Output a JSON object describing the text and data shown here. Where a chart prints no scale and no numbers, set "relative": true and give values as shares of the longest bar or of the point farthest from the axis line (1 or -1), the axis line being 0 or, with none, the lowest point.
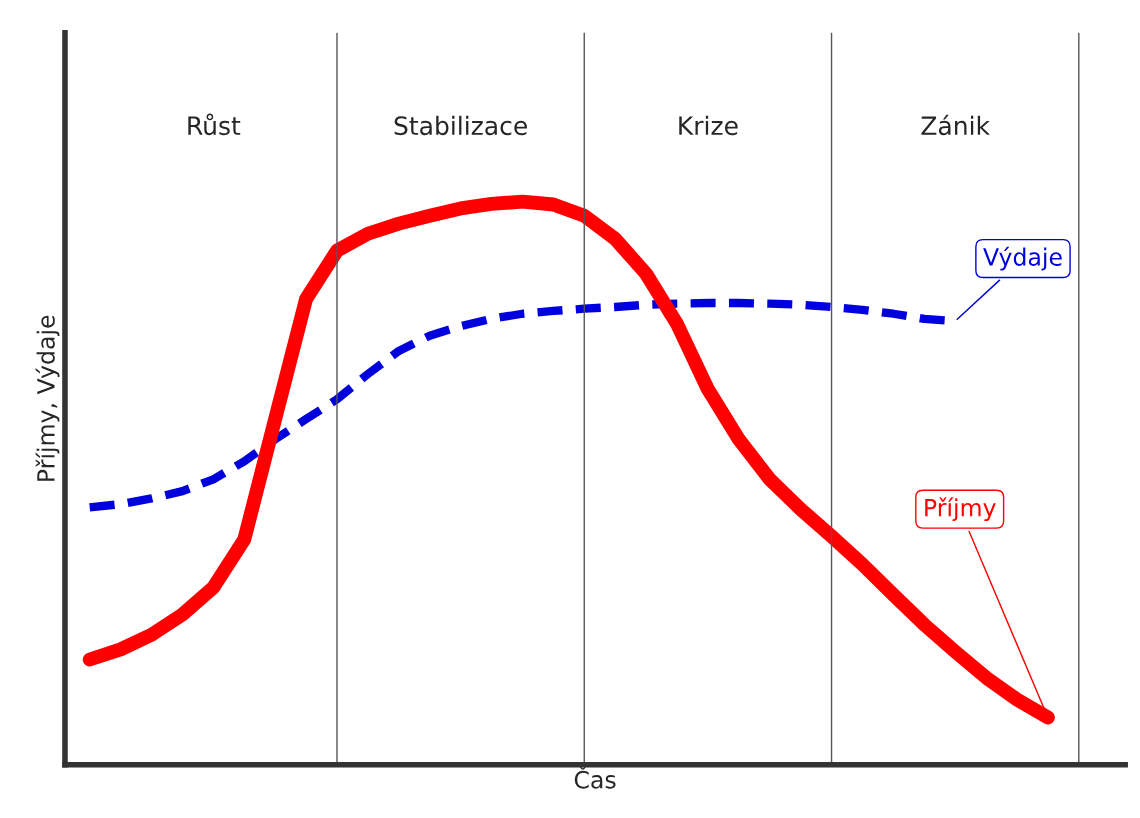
{
  "chart_data": {
    "type": "line",
    "relative": true,
    "xlabel": "Čas",
    "ylabel": "Příjmy, Výdaje",
    "legend": false,
    "grid": "x",
    "annotations": [
      "Růst",
      "Stabilizace",
      "Krize",
      "Zánik"
    ],
    "categories": [
      null,
      null,
      null,
      null,
      null,
      null,
      null,
      null,
      null,
      null,
      null,
      null,
      null,
      null,
      null,
      null,
      null,
      null,
      null,
      null,
      null,
      null,
      null,
      null,
      null,
      null,
      null,
      null,
      null,
      null,
      null,
      null,
      null
    ],
    "series": [
      {
        "name": "Výdaje",
        "color": "#0000dd",
        "line_style": "dashed",
        "values": [
          0.457,
          0.463,
          0.473,
          0.486,
          0.507,
          0.539,
          0.578,
          0.614,
          0.649,
          0.694,
          0.735,
          0.762,
          0.779,
          0.792,
          0.801,
          0.806,
          0.81,
          0.813,
          0.817,
          0.819,
          0.82,
          0.82,
          0.819,
          0.817,
          0.813,
          0.808,
          0.801,
          0.792,
          0.788,
          null,
          null,
          null,
          null
        ]
      },
      {
        "name": "Příjmy",
        "color": "#ff0000",
        "line_style": "solid",
        "values": [
          0.187,
          0.205,
          0.231,
          0.267,
          0.315,
          0.4,
          0.614,
          0.827,
          0.913,
          0.943,
          0.961,
          0.975,
          0.988,
          0.996,
          1.0,
          0.995,
          0.975,
          0.934,
          0.872,
          0.783,
          0.667,
          0.578,
          0.507,
          0.454,
          0.406,
          0.356,
          0.302,
          0.249,
          0.201,
          0.155,
          0.116,
          0.084,
          null
        ]
      }
    ]
  }
}
